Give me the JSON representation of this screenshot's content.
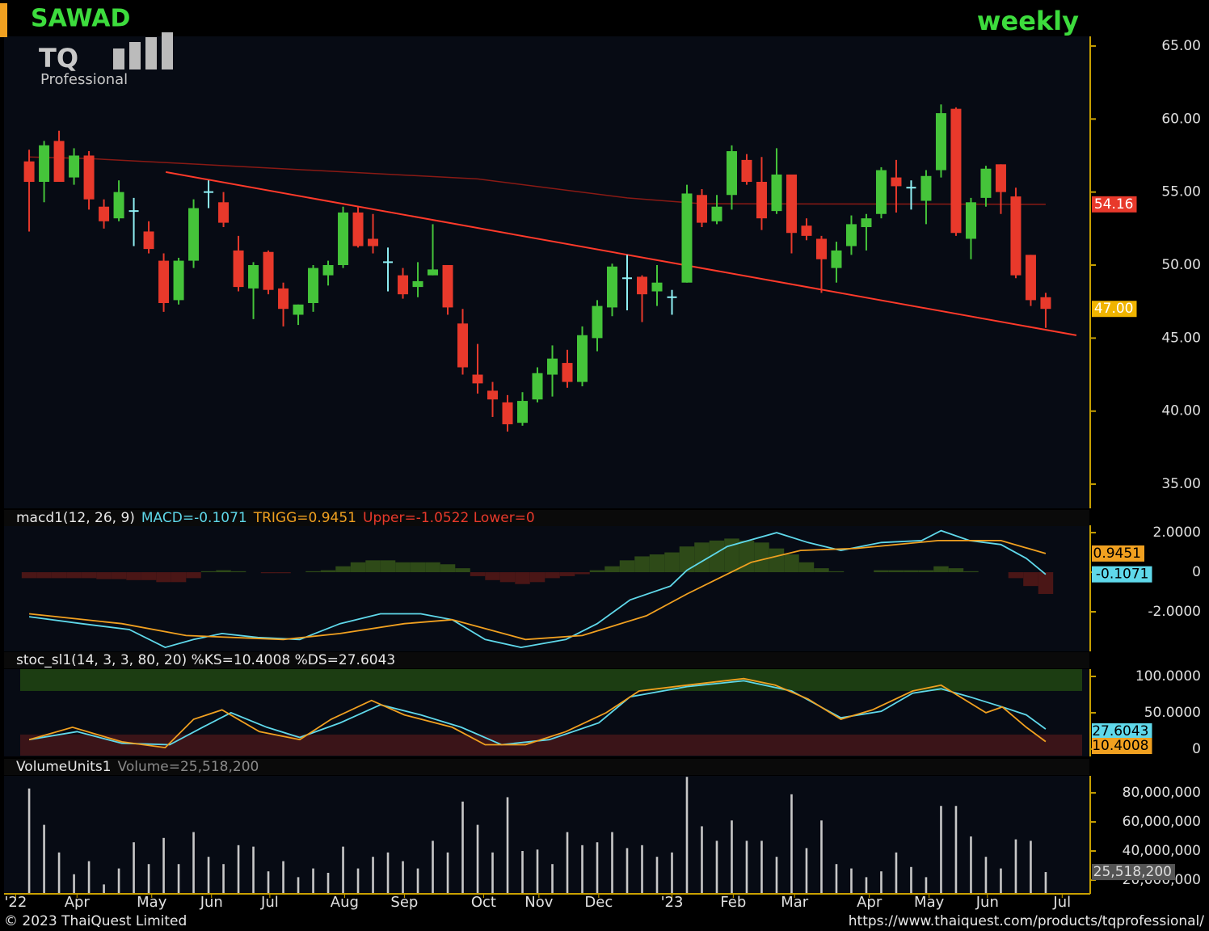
{
  "header": {
    "symbol": "SAWAD",
    "period": "weekly",
    "logo_mark": "TQ",
    "logo_text": "Professional"
  },
  "footer": {
    "copyright": "© 2023 ThaiQuest Limited",
    "url": "https://www.thaiquest.com/products/tqprofessional/"
  },
  "chart_data": [
    {
      "type": "candlestick",
      "xlim": [
        -1.68,
        70.76
      ],
      "ylim": [
        33.4,
        65.66
      ],
      "yticks": [
        {
          "value": 35,
          "label": "35.00"
        },
        {
          "value": 40,
          "label": "40.00"
        },
        {
          "value": 45,
          "label": "45.00"
        },
        {
          "value": 50,
          "label": "50.00"
        },
        {
          "value": 55,
          "label": "55.00"
        },
        {
          "value": 60,
          "label": "60.00"
        },
        {
          "value": 65,
          "label": "65.00"
        }
      ],
      "up_color": "#45c43a",
      "down_color": "#e8392b",
      "doji_color": "#8ff0f5",
      "open": [
        57.1,
        55.7,
        58.5,
        56,
        57.5,
        54,
        53.2,
        53.7,
        52.3,
        50.3,
        47.6,
        50.3,
        55,
        54.3,
        51,
        48.4,
        50.9,
        48.4,
        46.6,
        47.4,
        49.3,
        50,
        53.6,
        51.8,
        50.2,
        49.3,
        48.5,
        49.3,
        50,
        46,
        42.5,
        41.4,
        40.6,
        39.2,
        40.8,
        42.5,
        43.3,
        42,
        45,
        47.1,
        49.1,
        49.2,
        48.2,
        47.8,
        48.8,
        54.8,
        53,
        54.8,
        57.2,
        55.7,
        53.7,
        56.2,
        52.7,
        51.8,
        49.8,
        51.3,
        52.6,
        53.5,
        56,
        55.3,
        54.4,
        56.5,
        60.7,
        51.8,
        54.6,
        56.9,
        54.7,
        50.7,
        47.8
      ],
      "high": [
        57.9,
        58.5,
        59.2,
        58,
        57.8,
        54.5,
        55.8,
        54.6,
        53,
        50.8,
        50.5,
        54.5,
        55.8,
        55,
        52,
        50.2,
        51,
        48.8,
        47.3,
        50,
        50.3,
        54,
        54,
        53.5,
        51.2,
        49.8,
        50.2,
        52.8,
        50,
        47,
        44.6,
        42,
        41.1,
        41.3,
        43,
        44.5,
        44.2,
        45.8,
        47.6,
        50.1,
        50.7,
        49.3,
        50,
        48.3,
        55.5,
        55.2,
        54.8,
        58.2,
        57.6,
        57.4,
        58,
        56.2,
        53.2,
        52,
        51.6,
        53.4,
        53.5,
        56.7,
        57.2,
        55.8,
        56.5,
        61,
        60.8,
        54.6,
        56.8,
        56.9,
        55.3,
        50.7,
        48.1
      ],
      "low": [
        52.3,
        54.3,
        56,
        55.5,
        53.8,
        52.5,
        53,
        51.3,
        50.8,
        46.8,
        47.3,
        49.8,
        53.9,
        52.6,
        48.2,
        46.3,
        48,
        45.8,
        45.9,
        46.8,
        48.6,
        49.8,
        51.2,
        50.8,
        48.2,
        47.7,
        47.8,
        49.3,
        46.6,
        42.5,
        41.2,
        39.6,
        38.6,
        39,
        40.6,
        41,
        41.6,
        41.7,
        44.1,
        46.5,
        46.9,
        46.1,
        47.2,
        46.6,
        48.8,
        52.6,
        52.8,
        53.8,
        55.5,
        52.4,
        53.5,
        50.8,
        51.7,
        48.1,
        48.8,
        50.7,
        51,
        53.2,
        53.6,
        53.8,
        52.8,
        56,
        52,
        50.4,
        54,
        53.5,
        49.1,
        47.2,
        45.7
      ],
      "close": [
        55.7,
        58.2,
        55.7,
        57.5,
        54.5,
        53,
        55,
        53.7,
        51.1,
        47.4,
        50.3,
        53.9,
        55,
        52.9,
        48.5,
        50,
        48.3,
        47,
        47.3,
        49.8,
        50,
        53.6,
        51.3,
        51.3,
        50.2,
        48,
        48.9,
        49.7,
        47.1,
        43,
        41.9,
        40.8,
        39.1,
        40.7,
        42.6,
        43.6,
        42,
        45.2,
        47.2,
        49.9,
        49.1,
        48,
        48.8,
        47.8,
        54.9,
        52.9,
        54,
        57.8,
        55.7,
        53.2,
        56.2,
        52.2,
        52,
        50.4,
        51,
        52.8,
        53.2,
        56.5,
        55.4,
        55.3,
        56.1,
        60.4,
        52.2,
        54.3,
        56.6,
        55,
        49.3,
        47.6,
        47
      ],
      "ma": {
        "color": "#8a1a14",
        "x": [
          0,
          3.9,
          30,
          40,
          45,
          68
        ],
        "values": [
          57.4,
          57.3,
          55.9,
          54.6,
          54.2,
          54.16
        ]
      },
      "trendline": {
        "color": "#ff3a2a",
        "x": [
          9.14,
          70.05
        ],
        "values": [
          56.37,
          45.19
        ]
      },
      "tags": [
        {
          "value": 54.16,
          "label": "54.16",
          "color": "#e8392b"
        },
        {
          "value": 47,
          "label": "47.00",
          "color": "#f0b400"
        }
      ]
    },
    {
      "type": "macd",
      "xlim": [
        -1.68,
        70.76
      ],
      "ylim": [
        -3.96,
        2.37
      ],
      "legend": [
        {
          "text": "macd1(12, 26, 9)",
          "color": "#e8e8e8"
        },
        {
          "text": "MACD=-0.1071",
          "color": "#5fd8ea"
        },
        {
          "text": "TRIGG=0.9451",
          "color": "#f0a020"
        },
        {
          "text": "Upper=-1.0522 Lower=0",
          "color": "#e8392b"
        }
      ],
      "yticks": [
        {
          "value": -2,
          "label": "-2.0000"
        },
        0,
        {
          "value": 2,
          "label": "2.0000"
        }
      ],
      "histogram": {
        "up_color": "#2e4a18",
        "down_color": "#4a1616",
        "values": [
          -0.3,
          -0.3,
          -0.3,
          -0.3,
          -0.3,
          -0.35,
          -0.35,
          -0.4,
          -0.4,
          -0.5,
          -0.5,
          -0.3,
          0.05,
          0.1,
          0.05,
          0,
          -0.05,
          -0.05,
          0,
          0.05,
          0.1,
          0.3,
          0.5,
          0.6,
          0.6,
          0.5,
          0.5,
          0.5,
          0.4,
          0.2,
          -0.2,
          -0.4,
          -0.5,
          -0.6,
          -0.5,
          -0.3,
          -0.2,
          -0.1,
          0.1,
          0.3,
          0.6,
          0.8,
          0.9,
          1.0,
          1.3,
          1.5,
          1.6,
          1.7,
          1.6,
          1.5,
          1.2,
          0.9,
          0.5,
          0.2,
          0.05,
          0,
          0,
          0.1,
          0.1,
          0.1,
          0.1,
          0.3,
          0.2,
          0.05,
          0,
          0,
          -0.3,
          -0.7,
          -1.1
        ]
      },
      "series": [
        {
          "name": "MACD",
          "color": "#5fd8ea",
          "x": [
            0,
            3.5,
            6.7,
            9.1,
            11,
            12.9,
            15.3,
            18.1,
            20.8,
            23.5,
            26.2,
            28.3,
            30.5,
            32.9,
            35.9,
            38,
            40.2,
            42.9,
            44,
            46.7,
            50,
            52.1,
            54.3,
            57,
            59.7,
            61,
            62.9,
            65,
            66.7,
            68
          ],
          "values": [
            -2.25,
            -2.6,
            -2.9,
            -3.8,
            -3.4,
            -3.1,
            -3.3,
            -3.4,
            -2.6,
            -2.1,
            -2.1,
            -2.4,
            -3.4,
            -3.8,
            -3.4,
            -2.6,
            -1.4,
            -0.7,
            0.1,
            1.3,
            2.0,
            1.5,
            1.1,
            1.5,
            1.6,
            2.1,
            1.6,
            1.4,
            0.7,
            -0.1071
          ]
        },
        {
          "name": "TRIGG",
          "color": "#f0a020",
          "x": [
            0,
            6.2,
            10.5,
            17,
            20.8,
            25.1,
            28.3,
            33.2,
            37,
            41.3,
            44,
            48.3,
            51.6,
            55.3,
            60.8,
            65,
            68
          ],
          "values": [
            -2.1,
            -2.6,
            -3.2,
            -3.4,
            -3.1,
            -2.6,
            -2.4,
            -3.4,
            -3.2,
            -2.2,
            -1.1,
            0.5,
            1.1,
            1.2,
            1.6,
            1.6,
            0.9451
          ]
        }
      ]
    },
    {
      "type": "stochastic",
      "xlim": [
        -1.68,
        70.76
      ],
      "ylim": [
        -9,
        110
      ],
      "legend": [
        {
          "text": "stoc_sl1(14, 3, 3, 80, 20) %KS=10.4008 %DS=27.6043",
          "color": "#e8e8e8"
        }
      ],
      "yticks": [
        0,
        {
          "value": 50,
          "label": "50.0000"
        },
        {
          "value": 100,
          "label": "100.0000"
        }
      ],
      "bands": [
        {
          "from": 80,
          "to": 110,
          "color": "#1c3d12"
        },
        {
          "from": -9,
          "to": 20,
          "color": "#3a1418"
        }
      ],
      "series": [
        {
          "name": "%DS",
          "color": "#5fd8ea",
          "x": [
            0,
            3.2,
            6.2,
            9.4,
            11.6,
            13.5,
            15.9,
            18.1,
            20.8,
            23.5,
            26.2,
            28.9,
            31.6,
            34.8,
            38.1,
            40.2,
            44,
            47.8,
            51,
            54.3,
            57,
            59.1,
            61,
            62.9,
            65.1,
            66.7,
            68
          ],
          "values": [
            13,
            24,
            8,
            6,
            30,
            50,
            30,
            16,
            36,
            61,
            47,
            30,
            6,
            13,
            36,
            72,
            86,
            94,
            80,
            43,
            52,
            77,
            83,
            72,
            58,
            47,
            27.6043
          ]
        },
        {
          "name": "%KS",
          "color": "#f0a020",
          "x": [
            0,
            2.9,
            6.2,
            9.1,
            11,
            12.9,
            15.4,
            18.1,
            20.2,
            22.9,
            25.1,
            28.3,
            30.5,
            33.2,
            35.9,
            38.6,
            40.8,
            44,
            47.8,
            49.9,
            52.1,
            54.3,
            56.4,
            59.1,
            61,
            64,
            65.1,
            66.7,
            68
          ],
          "values": [
            13,
            30,
            10,
            2,
            41,
            54,
            24,
            13,
            41,
            67,
            47,
            30,
            6,
            6,
            24,
            50,
            80,
            88,
            97,
            88,
            69,
            41,
            54,
            80,
            88,
            50,
            58,
            30,
            10.4008
          ]
        }
      ]
    },
    {
      "type": "volume",
      "xlim": [
        -1.68,
        70.76
      ],
      "ylim": [
        11100000,
        91700000
      ],
      "color": "#c8c8c8",
      "legend": [
        {
          "text": "VolumeUnits1",
          "color": "#e8e8e8"
        },
        {
          "text": "Volume=25,518,200",
          "color": "#8a8a8a"
        }
      ],
      "yticks": [
        {
          "value": 20000000,
          "label": "20,000,000"
        },
        {
          "value": 40000000,
          "label": "40,000,000"
        },
        {
          "value": 60000000,
          "label": "60,000,000"
        },
        {
          "value": 80000000,
          "label": "80,000,000"
        }
      ],
      "values": [
        83000000,
        58000000,
        39000000,
        24000000,
        33000000,
        17000000,
        28000000,
        46000000,
        31000000,
        49000000,
        31000000,
        53000000,
        36000000,
        31000000,
        44000000,
        43000000,
        26000000,
        33000000,
        22000000,
        28000000,
        25000000,
        43000000,
        28000000,
        36000000,
        39000000,
        33000000,
        28000000,
        47000000,
        39000000,
        74000000,
        58000000,
        39000000,
        77000000,
        40000000,
        41000000,
        31000000,
        53000000,
        44000000,
        46000000,
        53000000,
        42000000,
        44000000,
        36000000,
        39000000,
        91000000,
        57000000,
        47000000,
        61000000,
        47000000,
        47000000,
        36000000,
        79000000,
        42000000,
        61000000,
        31000000,
        28000000,
        22000000,
        26000000,
        39000000,
        29000000,
        22000000,
        71000000,
        71000000,
        50000000,
        36000000,
        28000000,
        48000000,
        47000000,
        25518200
      ],
      "tag": {
        "value": 25518200,
        "label": "25,518,200",
        "color": "#555555"
      },
      "xticks": [
        {
          "value": -0.9,
          "label": "'22"
        },
        {
          "value": 3.2,
          "label": "Apr"
        },
        {
          "value": 8.2,
          "label": "May"
        },
        {
          "value": 12.2,
          "label": "Jun"
        },
        {
          "value": 16.1,
          "label": "Jul"
        },
        {
          "value": 21.1,
          "label": "Aug"
        },
        {
          "value": 25.1,
          "label": "Sep"
        },
        {
          "value": 30.4,
          "label": "Oct"
        },
        {
          "value": 34.1,
          "label": "Nov"
        },
        {
          "value": 38.1,
          "label": "Dec"
        },
        {
          "value": 43.0,
          "label": "'23"
        },
        {
          "value": 47.1,
          "label": "Feb"
        },
        {
          "value": 51.2,
          "label": "Mar"
        },
        {
          "value": 56.2,
          "label": "Apr"
        },
        {
          "value": 60.2,
          "label": "May"
        },
        {
          "value": 64.1,
          "label": "Jun"
        },
        {
          "value": 69.1,
          "label": "Jul"
        }
      ]
    }
  ]
}
